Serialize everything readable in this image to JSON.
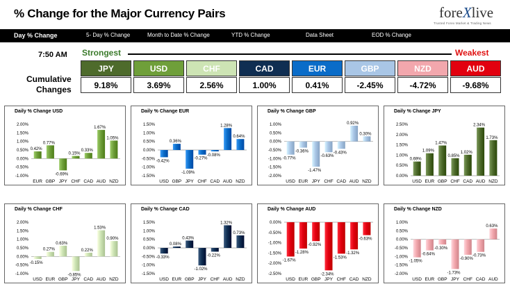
{
  "header": {
    "title": "% Change for the Major Currency Pairs",
    "logo": {
      "prefix": "fore",
      "x": "X",
      "suffix": "live",
      "tagline": "Trusted Forex Market & Trading News"
    }
  },
  "nav": [
    "Day % Change",
    "5- Day % Change",
    "Month to Date % Change",
    "YTD % Change",
    "Data Sheet",
    "EOD % Change"
  ],
  "summary": {
    "time": "7:50 AM",
    "strongest_label": "Strongest",
    "weakest_label": "Weakest",
    "cumulative_label_1": "Cumulative",
    "cumulative_label_2": "Changes",
    "currencies": [
      {
        "name": "JPY",
        "value": "9.18%",
        "color": "#4e6b2c"
      },
      {
        "name": "USD",
        "value": "3.69%",
        "color": "#6f9f3a"
      },
      {
        "name": "CHF",
        "value": "2.56%",
        "color": "#cde4b4"
      },
      {
        "name": "CAD",
        "value": "1.00%",
        "color": "#0f2e52"
      },
      {
        "name": "EUR",
        "value": "0.41%",
        "color": "#0a6cc8"
      },
      {
        "name": "GBP",
        "value": "-2.45%",
        "color": "#a9c6e6"
      },
      {
        "name": "NZD",
        "value": "-4.72%",
        "color": "#f2a7ad"
      },
      {
        "name": "AUD",
        "value": "-9.68%",
        "color": "#e2000f"
      }
    ]
  },
  "chart_data": [
    {
      "type": "bar",
      "title": "Daily % Change USD",
      "categories": [
        "EUR",
        "GBP",
        "JPY",
        "CHF",
        "CAD",
        "AUD",
        "NZD"
      ],
      "values": [
        0.42,
        0.77,
        -0.69,
        0.15,
        0.33,
        1.67,
        1.05
      ],
      "ylim": [
        -1,
        2
      ],
      "yticks": [
        "2.00%",
        "1.50%",
        "1.00%",
        "0.50%",
        "0.00%",
        "-0.50%",
        "-1.00%"
      ],
      "pos_color": "#6f9f3a",
      "neg_color": "#6f9f3a",
      "labels": [
        "0.42%",
        "0.77%",
        "-0.69%",
        "0.15%",
        "0.33%",
        "1.67%",
        "1.05%"
      ]
    },
    {
      "type": "bar",
      "title": "Daily % Change EUR",
      "categories": [
        "USD",
        "GBP",
        "JPY",
        "CHF",
        "CAD",
        "AUD",
        "NZD"
      ],
      "values": [
        -0.42,
        0.36,
        -1.09,
        -0.27,
        -0.08,
        1.28,
        0.64
      ],
      "ylim": [
        -1.5,
        1.5
      ],
      "yticks": [
        "1.50%",
        "1.00%",
        "0.50%",
        "0.00%",
        "-0.50%",
        "-1.00%",
        "-1.50%"
      ],
      "pos_color": "#0a6cc8",
      "neg_color": "#0a6cc8",
      "labels": [
        "-0.42%",
        "0.36%",
        "-1.09%",
        "-0.27%",
        "-0.08%",
        "1.28%",
        "0.64%"
      ]
    },
    {
      "type": "bar",
      "title": "Daily % Change GBP",
      "categories": [
        "USD",
        "EUR",
        "JPY",
        "CHF",
        "CAD",
        "AUD",
        "NZD"
      ],
      "values": [
        -0.77,
        -0.36,
        -1.47,
        -0.63,
        -0.43,
        0.92,
        0.3
      ],
      "ylim": [
        -2,
        1
      ],
      "yticks": [
        "1.00%",
        "0.50%",
        "0.00%",
        "-0.50%",
        "-1.00%",
        "-1.50%",
        "-2.00%"
      ],
      "pos_color": "#a9c6e6",
      "neg_color": "#a9c6e6",
      "labels": [
        "-0.77%",
        "-0.36%",
        "-1.47%",
        "-0.63%",
        "-0.43%",
        "0.92%",
        "0.30%"
      ]
    },
    {
      "type": "bar",
      "title": "Daily % Change JPY",
      "categories": [
        "USD",
        "EUR",
        "GBP",
        "CHF",
        "CAD",
        "AUD",
        "NZD"
      ],
      "values": [
        0.69,
        1.09,
        1.47,
        0.85,
        1.02,
        2.34,
        1.73
      ],
      "ylim": [
        0,
        2.5
      ],
      "yticks": [
        "2.50%",
        "2.00%",
        "1.50%",
        "1.00%",
        "0.50%",
        "0.00%"
      ],
      "pos_color": "#4e6b2c",
      "neg_color": "#4e6b2c",
      "labels": [
        "0.69%",
        "1.09%",
        "1.47%",
        "0.85%",
        "1.02%",
        "2.34%",
        "1.73%"
      ]
    },
    {
      "type": "bar",
      "title": "Daily % Change CHF",
      "categories": [
        "USD",
        "EUR",
        "GBP",
        "JPY",
        "CAD",
        "AUD",
        "NZD"
      ],
      "values": [
        -0.15,
        0.27,
        0.63,
        -0.85,
        0.22,
        1.53,
        0.9
      ],
      "ylim": [
        -1,
        2
      ],
      "yticks": [
        "2.00%",
        "1.50%",
        "1.00%",
        "0.50%",
        "0.00%",
        "-0.50%",
        "-1.00%"
      ],
      "pos_color": "#cde4b4",
      "neg_color": "#cde4b4",
      "labels": [
        "-0.15%",
        "0.27%",
        "0.63%",
        "-0.85%",
        "0.22%",
        "1.53%",
        "0.90%"
      ]
    },
    {
      "type": "bar",
      "title": "Daily % Change CAD",
      "categories": [
        "USD",
        "EUR",
        "GBP",
        "JPY",
        "CHF",
        "AUD",
        "NZD"
      ],
      "values": [
        -0.33,
        0.08,
        0.43,
        -1.02,
        -0.22,
        1.32,
        0.73
      ],
      "ylim": [
        -1.5,
        1.5
      ],
      "yticks": [
        "1.50%",
        "1.00%",
        "0.50%",
        "0.00%",
        "-0.50%",
        "-1.00%",
        "-1.50%"
      ],
      "pos_color": "#0f2e52",
      "neg_color": "#0f2e52",
      "labels": [
        "-0.33%",
        "0.08%",
        "0.43%",
        "-1.02%",
        "-0.22%",
        "1.32%",
        "0.73%"
      ]
    },
    {
      "type": "bar",
      "title": "Daily % Change AUD",
      "categories": [
        "USD",
        "EUR",
        "GBP",
        "JPY",
        "CHF",
        "CAD",
        "NZD"
      ],
      "values": [
        -1.67,
        -1.28,
        -0.92,
        -2.34,
        -1.53,
        -1.32,
        -0.63
      ],
      "ylim": [
        -2.5,
        0
      ],
      "yticks": [
        "0.00%",
        "-0.50%",
        "-1.00%",
        "-1.50%",
        "-2.00%",
        "-2.50%"
      ],
      "pos_color": "#e2000f",
      "neg_color": "#e2000f",
      "labels": [
        "-1.67%",
        "-1.28%",
        "-0.92%",
        "-2.34%",
        "-1.53%",
        "-1.32%",
        "-0.63%"
      ]
    },
    {
      "type": "bar",
      "title": "Daily % Change NZD",
      "categories": [
        "USD",
        "EUR",
        "GBP",
        "JPY",
        "CHF",
        "CAD",
        "AUD"
      ],
      "values": [
        -1.05,
        -0.64,
        -0.3,
        -1.73,
        -0.9,
        -0.73,
        0.63
      ],
      "ylim": [
        -2,
        1
      ],
      "yticks": [
        "1.00%",
        "0.50%",
        "0.00%",
        "-0.50%",
        "-1.00%",
        "-1.50%",
        "-2.00%"
      ],
      "pos_color": "#f2a7ad",
      "neg_color": "#f2a7ad",
      "labels": [
        "-1.05%",
        "-0.64%",
        "-0.30%",
        "-1.73%",
        "-0.90%",
        "-0.73%",
        "0.63%"
      ]
    }
  ]
}
